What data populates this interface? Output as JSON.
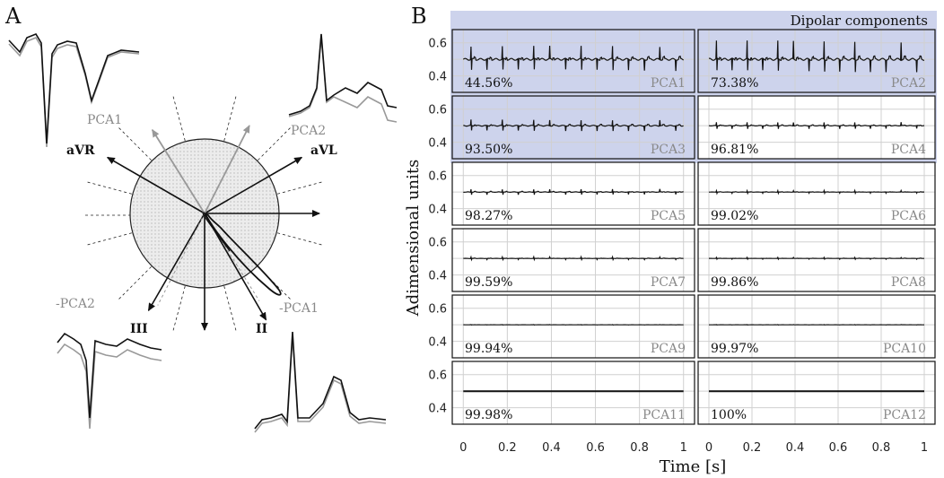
{
  "chart_data": [
    {
      "panel": "A",
      "type": "diagram",
      "title": "",
      "lead_axes": [
        {
          "label": "aVR",
          "angle_deg": -150
        },
        {
          "label": "aVL",
          "angle_deg": -30
        },
        {
          "label": "II",
          "angle_deg": 60
        },
        {
          "label": "III",
          "angle_deg": 120
        },
        {
          "label": "",
          "angle_deg": 0
        },
        {
          "label": "",
          "angle_deg": 90
        }
      ],
      "pca_axes": [
        {
          "label": "PCA1",
          "angle_deg": -122
        },
        {
          "label": "PCA2",
          "angle_deg": -63
        },
        {
          "label": "-PCA1",
          "angle_deg": 58
        },
        {
          "label": "-PCA2",
          "angle_deg": 117
        }
      ],
      "trace_colors": {
        "measured": "#111111",
        "reconstructed": "#999999"
      }
    },
    {
      "panel": "B",
      "type": "line",
      "xlabel": "Time [s]",
      "ylabel": "Adimensional units",
      "banner": "Dipolar components",
      "xlim": [
        -0.05,
        1.05
      ],
      "ylim": [
        0.3,
        0.68
      ],
      "x_ticks": [
        "0",
        "0.2",
        "0.4",
        "0.6",
        "0.8",
        "1"
      ],
      "y_ticks": [
        "0.4",
        "0.6"
      ],
      "series": [
        {
          "name": "PCA1",
          "cumulative_variance": "44.56%",
          "amplitude": 0.11,
          "dipolar": true
        },
        {
          "name": "PCA2",
          "cumulative_variance": "73.38%",
          "amplitude": 0.12,
          "dipolar": true
        },
        {
          "name": "PCA3",
          "cumulative_variance": "93.50%",
          "amplitude": 0.05,
          "dipolar": true
        },
        {
          "name": "PCA4",
          "cumulative_variance": "96.81%",
          "amplitude": 0.03,
          "dipolar": false
        },
        {
          "name": "PCA5",
          "cumulative_variance": "98.27%",
          "amplitude": 0.025,
          "dipolar": false
        },
        {
          "name": "PCA6",
          "cumulative_variance": "99.02%",
          "amplitude": 0.012,
          "dipolar": false
        },
        {
          "name": "PCA7",
          "cumulative_variance": "99.59%",
          "amplitude": 0.012,
          "dipolar": false
        },
        {
          "name": "PCA8",
          "cumulative_variance": "99.86%",
          "amplitude": 0.008,
          "dipolar": false
        },
        {
          "name": "PCA9",
          "cumulative_variance": "99.94%",
          "amplitude": 0.002,
          "dipolar": false
        },
        {
          "name": "PCA10",
          "cumulative_variance": "99.97%",
          "amplitude": 0.002,
          "dipolar": false
        },
        {
          "name": "PCA11",
          "cumulative_variance": "99.98%",
          "amplitude": 0.0,
          "dipolar": false
        },
        {
          "name": "PCA12",
          "cumulative_variance": "100%",
          "amplitude": 0.0,
          "dipolar": false
        }
      ],
      "baseline": 0.5,
      "colors": {
        "dipolar_bg": "#cdd3ec",
        "line": "#111111",
        "grid": "#d0d0d0"
      }
    }
  ],
  "labels": {
    "panel_a": "A",
    "panel_b": "B"
  }
}
